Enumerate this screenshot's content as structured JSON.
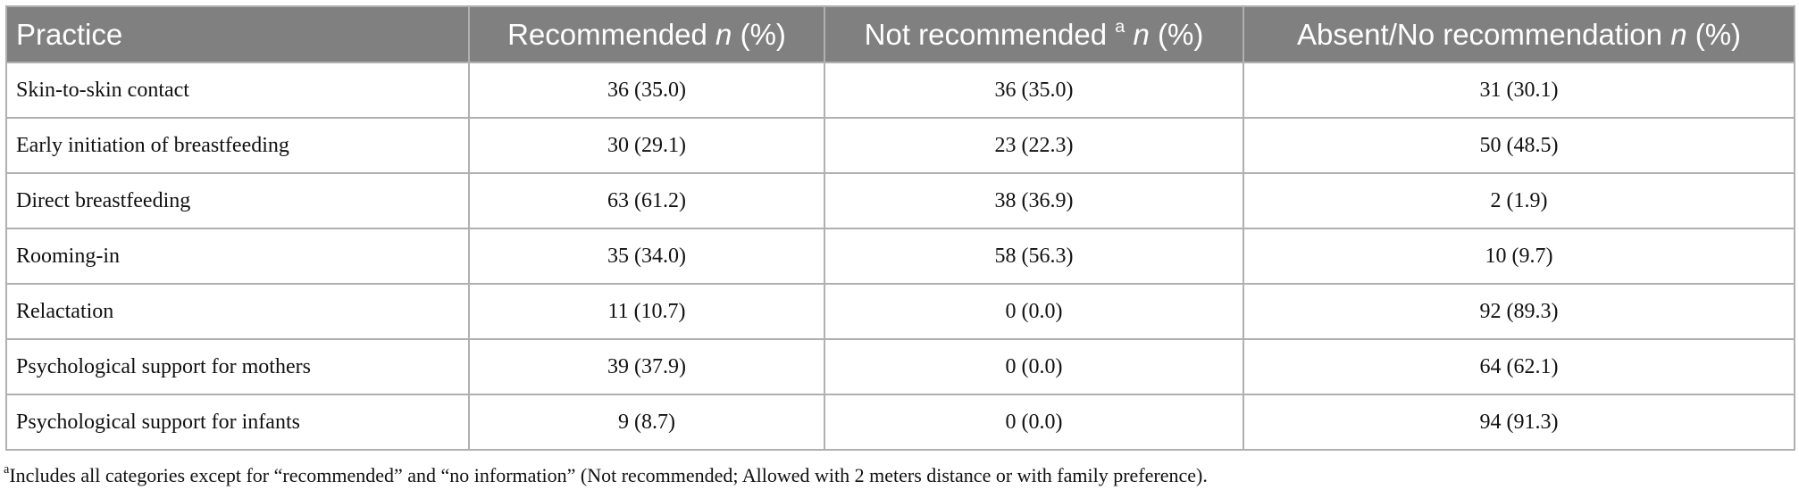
{
  "table": {
    "header": [
      {
        "label": "Practice"
      },
      {
        "label": "Recommended",
        "italic": "n",
        "after": "(%)"
      },
      {
        "label": "Not recommended",
        "sup": "a",
        "italic": "n",
        "after": "(%)"
      },
      {
        "label": "Absent/No recommendation",
        "italic": "n",
        "after": "(%)"
      }
    ],
    "rows": [
      [
        "Skin-to-skin contact",
        "36 (35.0)",
        "36 (35.0)",
        "31 (30.1)"
      ],
      [
        "Early initiation of breastfeeding",
        "30 (29.1)",
        "23 (22.3)",
        "50 (48.5)"
      ],
      [
        "Direct breastfeeding",
        "63 (61.2)",
        "38 (36.9)",
        "2 (1.9)"
      ],
      [
        "Rooming-in",
        "35 (34.0)",
        "58 (56.3)",
        "10 (9.7)"
      ],
      [
        "Relactation",
        "11 (10.7)",
        "0 (0.0)",
        "92 (89.3)"
      ],
      [
        "Psychological support for mothers",
        "39 (37.9)",
        "0 (0.0)",
        "64 (62.1)"
      ],
      [
        "Psychological support for infants",
        "9 (8.7)",
        "0 (0.0)",
        "94 (91.3)"
      ]
    ]
  },
  "footnote": {
    "marker": "a",
    "text": "Includes all categories except for “recommended” and “no information” (Not recommended; Allowed with 2 meters distance or with family preference)."
  }
}
